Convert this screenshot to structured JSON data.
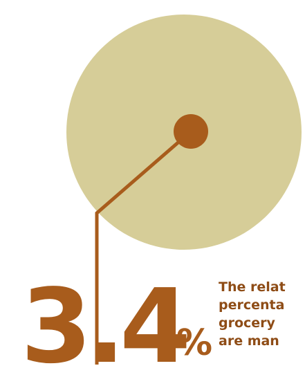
{
  "colors": {
    "circle": "#d6cd98",
    "accent": "#a85c1c",
    "caption": "#8e4c16"
  },
  "stat": {
    "value": "3.4",
    "unit": "%"
  },
  "caption": {
    "lines": [
      "The relat",
      "percenta",
      "grocery",
      "are man"
    ]
  }
}
